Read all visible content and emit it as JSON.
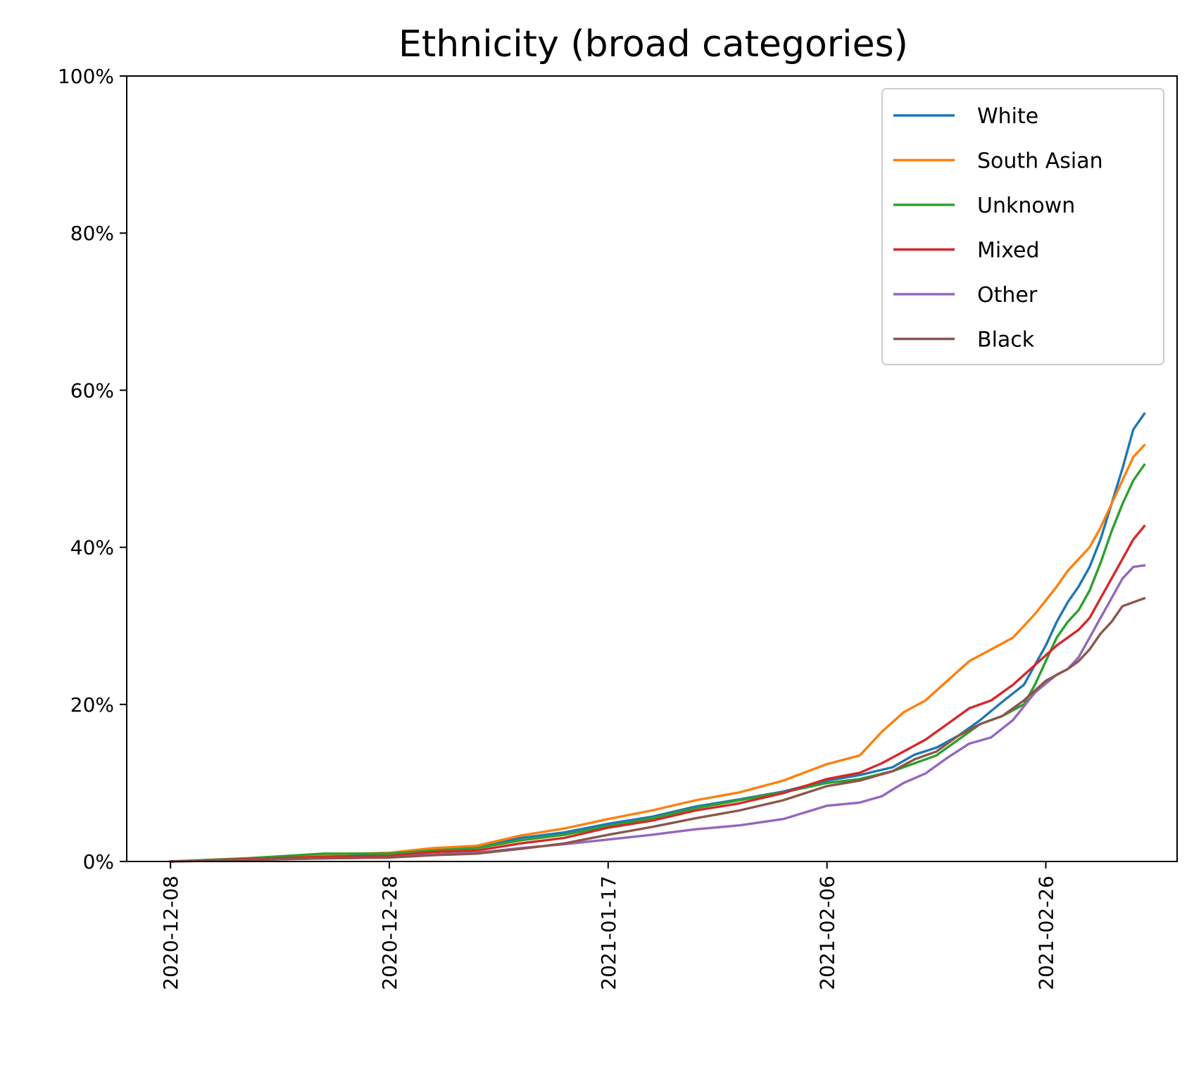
{
  "chart_data": {
    "type": "line",
    "title": "Ethnicity (broad categories)",
    "xlabel": "",
    "ylabel": "",
    "x_start": "2020-12-08",
    "x_end": "2021-03-06",
    "xlim": [
      "2020-12-04",
      "2021-03-10"
    ],
    "ylim": [
      0,
      100
    ],
    "x_ticks": [
      "2020-12-08",
      "2020-12-28",
      "2021-01-17",
      "2021-02-06",
      "2021-02-26"
    ],
    "y_ticks": [
      "0%",
      "20%",
      "40%",
      "60%",
      "80%",
      "100%"
    ],
    "y_tick_values": [
      0,
      20,
      40,
      60,
      80,
      100
    ],
    "grid": false,
    "legend_position": "top-right",
    "series": [
      {
        "name": "White",
        "color": "#1f77b4",
        "points": [
          [
            "2020-12-08",
            0
          ],
          [
            "2020-12-15",
            0.3
          ],
          [
            "2020-12-22",
            0.8
          ],
          [
            "2020-12-28",
            1.0
          ],
          [
            "2021-01-01",
            1.5
          ],
          [
            "2021-01-05",
            1.8
          ],
          [
            "2021-01-09",
            3.0
          ],
          [
            "2021-01-13",
            3.7
          ],
          [
            "2021-01-17",
            4.8
          ],
          [
            "2021-01-21",
            5.7
          ],
          [
            "2021-01-25",
            7.0
          ],
          [
            "2021-01-29",
            7.9
          ],
          [
            "2021-02-02",
            8.9
          ],
          [
            "2021-02-06",
            10.3
          ],
          [
            "2021-02-09",
            11.0
          ],
          [
            "2021-02-12",
            12.0
          ],
          [
            "2021-02-14",
            13.6
          ],
          [
            "2021-02-16",
            14.5
          ],
          [
            "2021-02-18",
            16.0
          ],
          [
            "2021-02-20",
            18.0
          ],
          [
            "2021-02-22",
            20.3
          ],
          [
            "2021-02-24",
            22.5
          ],
          [
            "2021-02-26",
            27.5
          ],
          [
            "2021-02-27",
            30.5
          ],
          [
            "2021-02-28",
            33.0
          ],
          [
            "2021-03-01",
            35.0
          ],
          [
            "2021-03-02",
            37.5
          ],
          [
            "2021-03-03",
            41.0
          ],
          [
            "2021-03-04",
            45.5
          ],
          [
            "2021-03-05",
            50.0
          ],
          [
            "2021-03-06",
            55.0
          ],
          [
            "2021-03-07",
            57.0
          ]
        ]
      },
      {
        "name": "South Asian",
        "color": "#ff7f0e",
        "points": [
          [
            "2020-12-08",
            0
          ],
          [
            "2020-12-15",
            0.3
          ],
          [
            "2020-12-22",
            0.9
          ],
          [
            "2020-12-28",
            1.1
          ],
          [
            "2021-01-01",
            1.7
          ],
          [
            "2021-01-05",
            2.0
          ],
          [
            "2021-01-09",
            3.3
          ],
          [
            "2021-01-13",
            4.2
          ],
          [
            "2021-01-17",
            5.4
          ],
          [
            "2021-01-21",
            6.5
          ],
          [
            "2021-01-25",
            7.8
          ],
          [
            "2021-01-29",
            8.8
          ],
          [
            "2021-02-02",
            10.3
          ],
          [
            "2021-02-06",
            12.4
          ],
          [
            "2021-02-09",
            13.5
          ],
          [
            "2021-02-11",
            16.5
          ],
          [
            "2021-02-13",
            19.0
          ],
          [
            "2021-02-15",
            20.5
          ],
          [
            "2021-02-17",
            23.0
          ],
          [
            "2021-02-19",
            25.5
          ],
          [
            "2021-02-21",
            27.0
          ],
          [
            "2021-02-23",
            28.5
          ],
          [
            "2021-02-25",
            31.5
          ],
          [
            "2021-02-27",
            35.0
          ],
          [
            "2021-02-28",
            37.0
          ],
          [
            "2021-03-01",
            38.5
          ],
          [
            "2021-03-02",
            40.0
          ],
          [
            "2021-03-03",
            42.5
          ],
          [
            "2021-03-04",
            45.5
          ],
          [
            "2021-03-05",
            48.5
          ],
          [
            "2021-03-06",
            51.5
          ],
          [
            "2021-03-07",
            53.0
          ]
        ]
      },
      {
        "name": "Unknown",
        "color": "#2ca02c",
        "points": [
          [
            "2020-12-08",
            0
          ],
          [
            "2020-12-15",
            0.4
          ],
          [
            "2020-12-22",
            1.0
          ],
          [
            "2020-12-28",
            1.0
          ],
          [
            "2021-01-01",
            1.4
          ],
          [
            "2021-01-05",
            1.7
          ],
          [
            "2021-01-09",
            2.7
          ],
          [
            "2021-01-13",
            3.4
          ],
          [
            "2021-01-17",
            4.5
          ],
          [
            "2021-01-21",
            5.5
          ],
          [
            "2021-01-25",
            6.8
          ],
          [
            "2021-01-29",
            7.8
          ],
          [
            "2021-02-02",
            8.8
          ],
          [
            "2021-02-06",
            10.0
          ],
          [
            "2021-02-09",
            10.5
          ],
          [
            "2021-02-12",
            11.5
          ],
          [
            "2021-02-14",
            12.5
          ],
          [
            "2021-02-16",
            13.5
          ],
          [
            "2021-02-18",
            15.5
          ],
          [
            "2021-02-20",
            17.5
          ],
          [
            "2021-02-22",
            18.5
          ],
          [
            "2021-02-24",
            20.0
          ],
          [
            "2021-02-25",
            22.5
          ],
          [
            "2021-02-26",
            25.5
          ],
          [
            "2021-02-27",
            28.5
          ],
          [
            "2021-02-28",
            30.5
          ],
          [
            "2021-03-01",
            32.0
          ],
          [
            "2021-03-02",
            34.5
          ],
          [
            "2021-03-03",
            38.0
          ],
          [
            "2021-03-04",
            42.0
          ],
          [
            "2021-03-05",
            45.5
          ],
          [
            "2021-03-06",
            48.5
          ],
          [
            "2021-03-07",
            50.5
          ]
        ]
      },
      {
        "name": "Mixed",
        "color": "#d62728",
        "points": [
          [
            "2020-12-08",
            0
          ],
          [
            "2020-12-15",
            0.3
          ],
          [
            "2020-12-22",
            0.6
          ],
          [
            "2020-12-28",
            0.7
          ],
          [
            "2021-01-01",
            1.2
          ],
          [
            "2021-01-05",
            1.4
          ],
          [
            "2021-01-09",
            2.3
          ],
          [
            "2021-01-13",
            3.0
          ],
          [
            "2021-01-17",
            4.3
          ],
          [
            "2021-01-21",
            5.2
          ],
          [
            "2021-01-25",
            6.5
          ],
          [
            "2021-01-29",
            7.4
          ],
          [
            "2021-02-02",
            8.7
          ],
          [
            "2021-02-06",
            10.5
          ],
          [
            "2021-02-09",
            11.3
          ],
          [
            "2021-02-11",
            12.5
          ],
          [
            "2021-02-13",
            14.0
          ],
          [
            "2021-02-15",
            15.5
          ],
          [
            "2021-02-17",
            17.5
          ],
          [
            "2021-02-19",
            19.5
          ],
          [
            "2021-02-21",
            20.5
          ],
          [
            "2021-02-23",
            22.5
          ],
          [
            "2021-02-25",
            25.0
          ],
          [
            "2021-02-27",
            27.5
          ],
          [
            "2021-02-28",
            28.5
          ],
          [
            "2021-03-01",
            29.5
          ],
          [
            "2021-03-02",
            31.0
          ],
          [
            "2021-03-03",
            33.5
          ],
          [
            "2021-03-04",
            36.0
          ],
          [
            "2021-03-05",
            38.5
          ],
          [
            "2021-03-06",
            41.0
          ],
          [
            "2021-03-07",
            42.7
          ]
        ]
      },
      {
        "name": "Other",
        "color": "#9467bd",
        "points": [
          [
            "2020-12-08",
            0
          ],
          [
            "2020-12-15",
            0.2
          ],
          [
            "2020-12-22",
            0.4
          ],
          [
            "2020-12-28",
            0.5
          ],
          [
            "2021-01-01",
            0.9
          ],
          [
            "2021-01-05",
            1.1
          ],
          [
            "2021-01-09",
            1.7
          ],
          [
            "2021-01-13",
            2.2
          ],
          [
            "2021-01-17",
            2.8
          ],
          [
            "2021-01-21",
            3.4
          ],
          [
            "2021-01-25",
            4.1
          ],
          [
            "2021-01-29",
            4.6
          ],
          [
            "2021-02-02",
            5.4
          ],
          [
            "2021-02-06",
            7.1
          ],
          [
            "2021-02-09",
            7.5
          ],
          [
            "2021-02-11",
            8.3
          ],
          [
            "2021-02-13",
            10.0
          ],
          [
            "2021-02-15",
            11.2
          ],
          [
            "2021-02-17",
            13.2
          ],
          [
            "2021-02-19",
            15.0
          ],
          [
            "2021-02-21",
            15.8
          ],
          [
            "2021-02-23",
            18.0
          ],
          [
            "2021-02-25",
            21.5
          ],
          [
            "2021-02-27",
            23.8
          ],
          [
            "2021-02-28",
            24.5
          ],
          [
            "2021-03-01",
            26.0
          ],
          [
            "2021-03-02",
            28.5
          ],
          [
            "2021-03-03",
            31.0
          ],
          [
            "2021-03-04",
            33.5
          ],
          [
            "2021-03-05",
            36.0
          ],
          [
            "2021-03-06",
            37.5
          ],
          [
            "2021-03-07",
            37.7
          ]
        ]
      },
      {
        "name": "Black",
        "color": "#8c564b",
        "points": [
          [
            "2020-12-08",
            0
          ],
          [
            "2020-12-15",
            0.2
          ],
          [
            "2020-12-22",
            0.4
          ],
          [
            "2020-12-28",
            0.5
          ],
          [
            "2021-01-01",
            0.8
          ],
          [
            "2021-01-05",
            1.0
          ],
          [
            "2021-01-09",
            1.6
          ],
          [
            "2021-01-13",
            2.3
          ],
          [
            "2021-01-17",
            3.4
          ],
          [
            "2021-01-21",
            4.4
          ],
          [
            "2021-01-25",
            5.5
          ],
          [
            "2021-01-29",
            6.5
          ],
          [
            "2021-02-02",
            7.8
          ],
          [
            "2021-02-06",
            9.6
          ],
          [
            "2021-02-09",
            10.3
          ],
          [
            "2021-02-12",
            11.5
          ],
          [
            "2021-02-14",
            13.0
          ],
          [
            "2021-02-16",
            14.0
          ],
          [
            "2021-02-18",
            16.0
          ],
          [
            "2021-02-20",
            17.5
          ],
          [
            "2021-02-22",
            18.5
          ],
          [
            "2021-02-24",
            20.5
          ],
          [
            "2021-02-26",
            23.0
          ],
          [
            "2021-02-28",
            24.5
          ],
          [
            "2021-03-01",
            25.5
          ],
          [
            "2021-03-02",
            27.0
          ],
          [
            "2021-03-03",
            29.0
          ],
          [
            "2021-03-04",
            30.5
          ],
          [
            "2021-03-05",
            32.5
          ],
          [
            "2021-03-06",
            33.0
          ],
          [
            "2021-03-07",
            33.5
          ]
        ]
      }
    ]
  }
}
